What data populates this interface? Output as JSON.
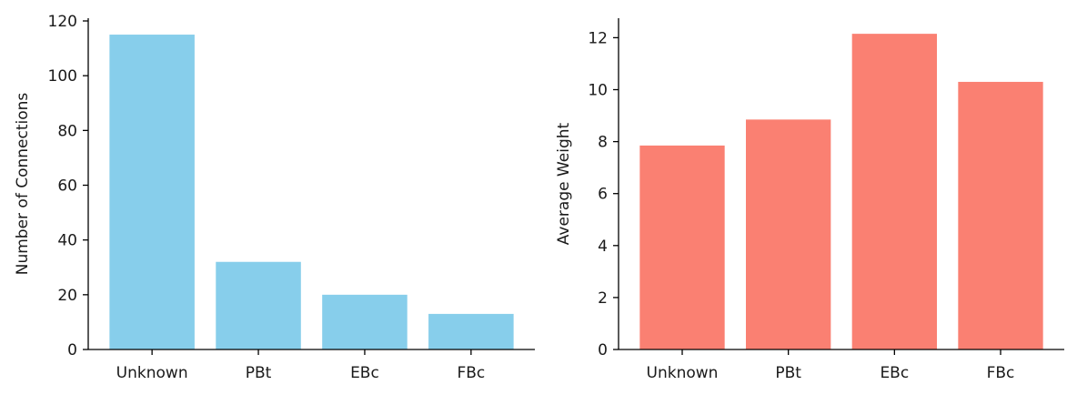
{
  "chart_data": [
    {
      "type": "bar",
      "categories": [
        "Unknown",
        "PBt",
        "EBc",
        "FBc"
      ],
      "values": [
        115,
        32,
        20,
        13
      ],
      "title": "",
      "xlabel": "",
      "ylabel": "Number of Connections",
      "ylim": [
        0,
        121
      ],
      "yticks": [
        0,
        20,
        40,
        60,
        80,
        100,
        120
      ],
      "color": "#87ceeb",
      "grid": false
    },
    {
      "type": "bar",
      "categories": [
        "Unknown",
        "PBt",
        "EBc",
        "FBc"
      ],
      "values": [
        7.85,
        8.85,
        12.15,
        10.3
      ],
      "title": "",
      "xlabel": "",
      "ylabel": "Average Weight",
      "ylim": [
        0,
        12.75
      ],
      "yticks": [
        0,
        2,
        4,
        6,
        8,
        10,
        12
      ],
      "color": "#fa8072",
      "grid": false
    }
  ]
}
